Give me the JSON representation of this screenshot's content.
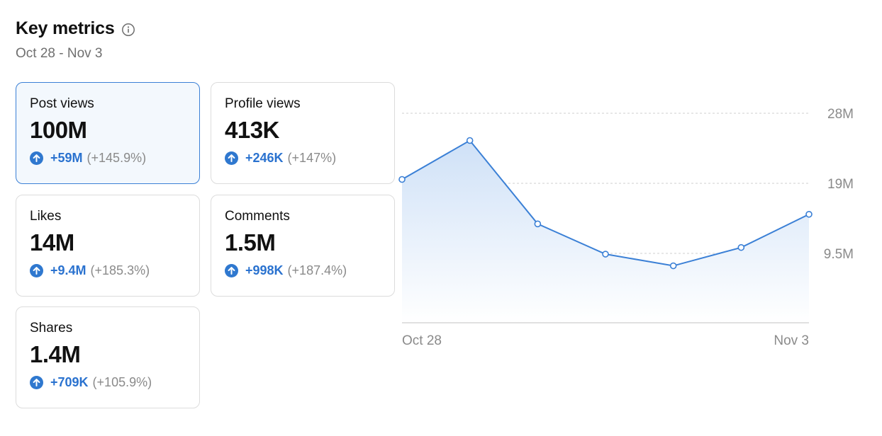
{
  "header": {
    "title": "Key metrics",
    "date_range": "Oct 28 - Nov 3",
    "info_icon": "info-circle-icon"
  },
  "cards": [
    {
      "label": "Post views",
      "value": "100M",
      "delta": "+59M",
      "pct": "(+145.9%)",
      "selected": true
    },
    {
      "label": "Profile views",
      "value": "413K",
      "delta": "+246K",
      "pct": "(+147%)",
      "selected": false
    },
    {
      "label": "Likes",
      "value": "14M",
      "delta": "+9.4M",
      "pct": "(+185.3%)",
      "selected": false
    },
    {
      "label": "Comments",
      "value": "1.5M",
      "delta": "+998K",
      "pct": "(+187.4%)",
      "selected": false
    },
    {
      "label": "Shares",
      "value": "1.4M",
      "delta": "+709K",
      "pct": "(+105.9%)",
      "selected": false
    }
  ],
  "colors": {
    "accent": "#2f78cf",
    "line": "#3b80d6",
    "muted": "#8a8a8a",
    "selected_bg": "#f3f8fd"
  },
  "chart_data": {
    "type": "area",
    "x": [
      "Oct 28",
      "Oct 29",
      "Oct 30",
      "Oct 31",
      "Nov 1",
      "Nov 2",
      "Nov 3"
    ],
    "y_ticks": [
      {
        "value": 9500000,
        "label": "9.5M"
      },
      {
        "value": 19000000,
        "label": "19M"
      },
      {
        "value": 28000000,
        "label": "28M"
      }
    ],
    "x_labels": [
      "Oct 28",
      "Nov 3"
    ],
    "ylim": [
      0,
      28000000
    ],
    "series": [
      {
        "values": [
          19500000,
          24500000,
          13500000,
          9400000,
          7800000,
          10300000,
          14800000
        ]
      }
    ],
    "grid": true,
    "y_axis_side": "right"
  }
}
